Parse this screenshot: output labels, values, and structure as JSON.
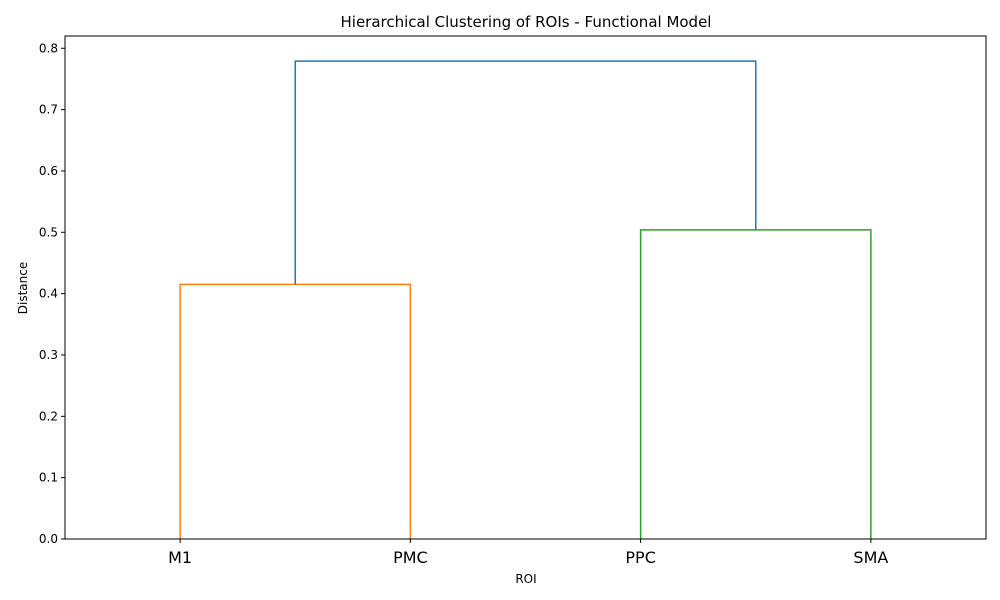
{
  "chart_data": {
    "type": "dendrogram",
    "title": "Hierarchical Clustering of ROIs - Functional Model",
    "xlabel": "ROI",
    "ylabel": "Distance",
    "ylim": [
      0,
      0.82
    ],
    "yticks": [
      "0.0",
      "0.1",
      "0.2",
      "0.3",
      "0.4",
      "0.5",
      "0.6",
      "0.7",
      "0.8"
    ],
    "leaves": [
      "M1",
      "PMC",
      "PPC",
      "SMA"
    ],
    "merges": [
      {
        "left": "M1",
        "right": "PMC",
        "distance": 0.415,
        "color": "#ff7f0e"
      },
      {
        "left": "PPC",
        "right": "SMA",
        "distance": 0.504,
        "color": "#2ca02c"
      },
      {
        "left": "M1+PMC",
        "right": "PPC+SMA",
        "distance": 0.779,
        "color": "#1f77b4"
      }
    ],
    "grid": false
  }
}
